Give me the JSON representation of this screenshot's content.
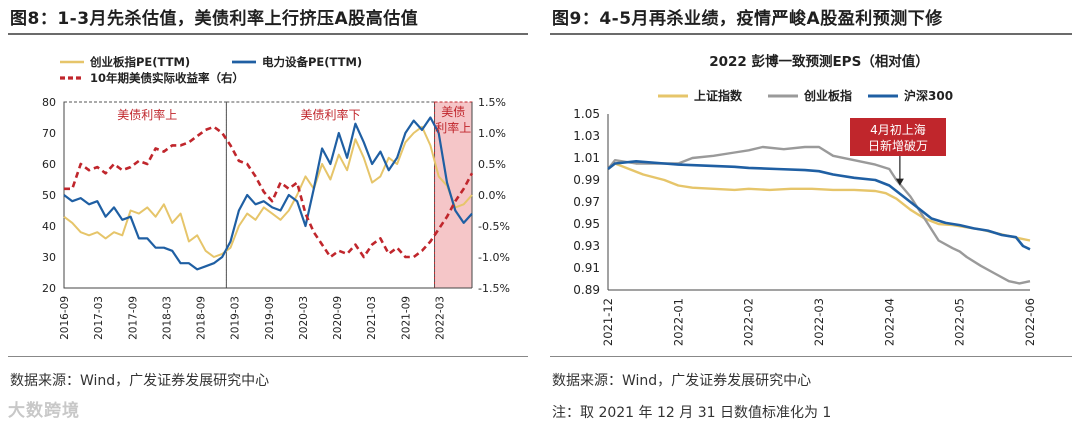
{
  "left": {
    "title": "图8：1-3月先杀估值，美债利率上行挤压A股高估值",
    "source": "数据来源：Wind，广发证券发展研究中心"
  },
  "right": {
    "title": "图9：4-5月再杀业绩，疫情严峻A股盈利预测下修",
    "source": "数据来源：Wind，广发证券发展研究中心",
    "note": "注：取 2021 年 12 月 31 日数值标准化为 1"
  },
  "watermark": "大数跨境",
  "colors": {
    "yellow": "#e6c56a",
    "blue": "#1f5fa3",
    "red": "#c0262c",
    "gray": "#9a9a9a",
    "shade": "#f5c6c8"
  },
  "chart_data": [
    {
      "type": "line",
      "title": "",
      "legend": [
        "创业板指PE(TTM)",
        "电力设备PE(TTM)",
        "10年期美债实际收益率（右）"
      ],
      "x_labels": [
        "2016-09",
        "2017-03",
        "2017-09",
        "2018-03",
        "2018-09",
        "2019-03",
        "2019-09",
        "2020-03",
        "2020-09",
        "2021-03",
        "2021-09",
        "2022-03"
      ],
      "y_left": {
        "min": 20,
        "max": 80,
        "ticks": [
          "20",
          "30",
          "40",
          "50",
          "60",
          "70",
          "80"
        ]
      },
      "y_right": {
        "min": -1.5,
        "max": 1.5,
        "ticks": [
          "-1.5%",
          "-1.0%",
          "-0.5%",
          "0.0%",
          "0.5%",
          "1.0%",
          "1.5%"
        ]
      },
      "annotations": [
        "美债利率上",
        "美债利率下",
        "美债利率上"
      ],
      "series": [
        {
          "name": "创业板指PE(TTM)",
          "axis": "left",
          "points": [
            [
              0,
              43
            ],
            [
              1,
              41
            ],
            [
              2,
              38
            ],
            [
              3,
              37
            ],
            [
              4,
              38
            ],
            [
              5,
              36
            ],
            [
              6,
              38
            ],
            [
              7,
              37
            ],
            [
              8,
              45
            ],
            [
              9,
              44
            ],
            [
              10,
              46
            ],
            [
              11,
              43
            ],
            [
              12,
              47
            ],
            [
              13,
              41
            ],
            [
              14,
              44
            ],
            [
              15,
              35
            ],
            [
              16,
              37
            ],
            [
              17,
              32
            ],
            [
              18,
              30
            ],
            [
              19,
              31
            ],
            [
              20,
              33
            ],
            [
              21,
              40
            ],
            [
              22,
              44
            ],
            [
              23,
              42
            ],
            [
              24,
              46
            ],
            [
              25,
              44
            ],
            [
              26,
              42
            ],
            [
              27,
              45
            ],
            [
              28,
              50
            ],
            [
              29,
              56
            ],
            [
              30,
              52
            ],
            [
              31,
              60
            ],
            [
              32,
              55
            ],
            [
              33,
              63
            ],
            [
              34,
              58
            ],
            [
              35,
              68
            ],
            [
              36,
              62
            ],
            [
              37,
              54
            ],
            [
              38,
              56
            ],
            [
              39,
              62
            ],
            [
              40,
              60
            ],
            [
              41,
              67
            ],
            [
              42,
              70
            ],
            [
              43,
              72
            ],
            [
              44,
              66
            ],
            [
              45,
              56
            ],
            [
              46,
              53
            ],
            [
              47,
              46
            ],
            [
              48,
              47
            ],
            [
              49,
              50
            ]
          ]
        },
        {
          "name": "电力设备PE(TTM)",
          "axis": "left",
          "points": [
            [
              0,
              50
            ],
            [
              1,
              48
            ],
            [
              2,
              49
            ],
            [
              3,
              47
            ],
            [
              4,
              48
            ],
            [
              5,
              43
            ],
            [
              6,
              46
            ],
            [
              7,
              42
            ],
            [
              8,
              43
            ],
            [
              9,
              36
            ],
            [
              10,
              36
            ],
            [
              11,
              33
            ],
            [
              12,
              33
            ],
            [
              13,
              32
            ],
            [
              14,
              28
            ],
            [
              15,
              28
            ],
            [
              16,
              26
            ],
            [
              17,
              27
            ],
            [
              18,
              28
            ],
            [
              19,
              30
            ],
            [
              20,
              35
            ],
            [
              21,
              45
            ],
            [
              22,
              50
            ],
            [
              23,
              47
            ],
            [
              24,
              48
            ],
            [
              25,
              46
            ],
            [
              26,
              45
            ],
            [
              27,
              50
            ],
            [
              28,
              48
            ],
            [
              29,
              40
            ],
            [
              30,
              52
            ],
            [
              31,
              65
            ],
            [
              32,
              60
            ],
            [
              33,
              70
            ],
            [
              34,
              62
            ],
            [
              35,
              73
            ],
            [
              36,
              67
            ],
            [
              37,
              60
            ],
            [
              38,
              64
            ],
            [
              39,
              58
            ],
            [
              40,
              62
            ],
            [
              41,
              70
            ],
            [
              42,
              74
            ],
            [
              43,
              71
            ],
            [
              44,
              75
            ],
            [
              45,
              70
            ],
            [
              46,
              54
            ],
            [
              47,
              45
            ],
            [
              48,
              41
            ],
            [
              49,
              44
            ]
          ]
        },
        {
          "name": "10年期美债实际收益率（右）",
          "axis": "right",
          "points": [
            [
              0,
              0.1
            ],
            [
              1,
              0.1
            ],
            [
              2,
              0.5
            ],
            [
              3,
              0.4
            ],
            [
              4,
              0.45
            ],
            [
              5,
              0.35
            ],
            [
              6,
              0.5
            ],
            [
              7,
              0.4
            ],
            [
              8,
              0.45
            ],
            [
              9,
              0.55
            ],
            [
              10,
              0.5
            ],
            [
              11,
              0.75
            ],
            [
              12,
              0.7
            ],
            [
              13,
              0.8
            ],
            [
              14,
              0.8
            ],
            [
              15,
              0.85
            ],
            [
              16,
              0.95
            ],
            [
              17,
              1.05
            ],
            [
              18,
              1.1
            ],
            [
              19,
              1.0
            ],
            [
              20,
              0.8
            ],
            [
              21,
              0.55
            ],
            [
              22,
              0.5
            ],
            [
              23,
              0.3
            ],
            [
              24,
              0.05
            ],
            [
              25,
              -0.1
            ],
            [
              26,
              0.2
            ],
            [
              27,
              0.1
            ],
            [
              28,
              0.2
            ],
            [
              29,
              -0.3
            ],
            [
              30,
              -0.6
            ],
            [
              31,
              -0.8
            ],
            [
              32,
              -1.0
            ],
            [
              33,
              -0.9
            ],
            [
              34,
              -0.95
            ],
            [
              35,
              -0.8
            ],
            [
              36,
              -1.0
            ],
            [
              37,
              -0.8
            ],
            [
              38,
              -0.7
            ],
            [
              39,
              -0.95
            ],
            [
              40,
              -0.85
            ],
            [
              41,
              -1.0
            ],
            [
              42,
              -1.0
            ],
            [
              43,
              -0.9
            ],
            [
              44,
              -0.75
            ],
            [
              45,
              -0.55
            ],
            [
              46,
              -0.35
            ],
            [
              47,
              -0.1
            ],
            [
              48,
              0.1
            ],
            [
              49,
              0.35
            ]
          ]
        }
      ]
    },
    {
      "type": "line",
      "title": "2022 彭博一致预测EPS（相对值）",
      "legend": [
        "上证指数",
        "创业板指",
        "沪深300"
      ],
      "x_labels": [
        "2021-12",
        "2022-01",
        "2022-02",
        "2022-03",
        "2022-04",
        "2022-05",
        "2022-06"
      ],
      "y_axis": {
        "min": 0.89,
        "max": 1.05,
        "ticks": [
          "0.89",
          "0.91",
          "0.93",
          "0.95",
          "0.97",
          "0.99",
          "1.01",
          "1.03",
          "1.05"
        ]
      },
      "annotation": [
        "4月初上海",
        "日新增破万"
      ],
      "series": [
        {
          "name": "上证指数",
          "points": [
            [
              0,
              1.0
            ],
            [
              0.1,
              1.005
            ],
            [
              0.3,
              1.0
            ],
            [
              0.5,
              0.995
            ],
            [
              0.8,
              0.99
            ],
            [
              1.0,
              0.985
            ],
            [
              1.2,
              0.983
            ],
            [
              1.5,
              0.982
            ],
            [
              1.8,
              0.981
            ],
            [
              2.0,
              0.982
            ],
            [
              2.3,
              0.981
            ],
            [
              2.6,
              0.982
            ],
            [
              2.9,
              0.982
            ],
            [
              3.2,
              0.981
            ],
            [
              3.5,
              0.981
            ],
            [
              3.8,
              0.98
            ],
            [
              3.95,
              0.978
            ],
            [
              4.1,
              0.973
            ],
            [
              4.3,
              0.963
            ],
            [
              4.5,
              0.955
            ],
            [
              4.7,
              0.95
            ],
            [
              4.9,
              0.949
            ],
            [
              5.1,
              0.947
            ],
            [
              5.3,
              0.945
            ],
            [
              5.5,
              0.942
            ],
            [
              5.7,
              0.939
            ],
            [
              5.85,
              0.937
            ],
            [
              6.0,
              0.935
            ]
          ]
        },
        {
          "name": "创业板指",
          "points": [
            [
              0,
              1.0
            ],
            [
              0.1,
              1.008
            ],
            [
              0.4,
              1.005
            ],
            [
              0.7,
              1.005
            ],
            [
              1.0,
              1.005
            ],
            [
              1.2,
              1.01
            ],
            [
              1.5,
              1.012
            ],
            [
              1.8,
              1.015
            ],
            [
              2.0,
              1.017
            ],
            [
              2.2,
              1.02
            ],
            [
              2.5,
              1.018
            ],
            [
              2.8,
              1.02
            ],
            [
              3.0,
              1.02
            ],
            [
              3.2,
              1.012
            ],
            [
              3.5,
              1.008
            ],
            [
              3.8,
              1.004
            ],
            [
              4.0,
              1.0
            ],
            [
              4.1,
              0.99
            ],
            [
              4.3,
              0.975
            ],
            [
              4.5,
              0.955
            ],
            [
              4.7,
              0.935
            ],
            [
              4.9,
              0.928
            ],
            [
              5.0,
              0.925
            ],
            [
              5.1,
              0.92
            ],
            [
              5.3,
              0.912
            ],
            [
              5.5,
              0.905
            ],
            [
              5.7,
              0.898
            ],
            [
              5.85,
              0.896
            ],
            [
              6.0,
              0.898
            ]
          ]
        },
        {
          "name": "沪深300",
          "points": [
            [
              0,
              1.0
            ],
            [
              0.1,
              1.005
            ],
            [
              0.4,
              1.007
            ],
            [
              0.8,
              1.005
            ],
            [
              1.0,
              1.004
            ],
            [
              1.4,
              1.003
            ],
            [
              1.8,
              1.002
            ],
            [
              2.0,
              1.001
            ],
            [
              2.4,
              1.0
            ],
            [
              2.8,
              0.999
            ],
            [
              3.0,
              0.998
            ],
            [
              3.2,
              0.995
            ],
            [
              3.5,
              0.992
            ],
            [
              3.8,
              0.99
            ],
            [
              4.0,
              0.985
            ],
            [
              4.2,
              0.975
            ],
            [
              4.4,
              0.965
            ],
            [
              4.6,
              0.955
            ],
            [
              4.8,
              0.951
            ],
            [
              5.0,
              0.949
            ],
            [
              5.2,
              0.946
            ],
            [
              5.4,
              0.944
            ],
            [
              5.6,
              0.94
            ],
            [
              5.8,
              0.938
            ],
            [
              5.9,
              0.93
            ],
            [
              6.0,
              0.927
            ]
          ]
        }
      ]
    }
  ]
}
